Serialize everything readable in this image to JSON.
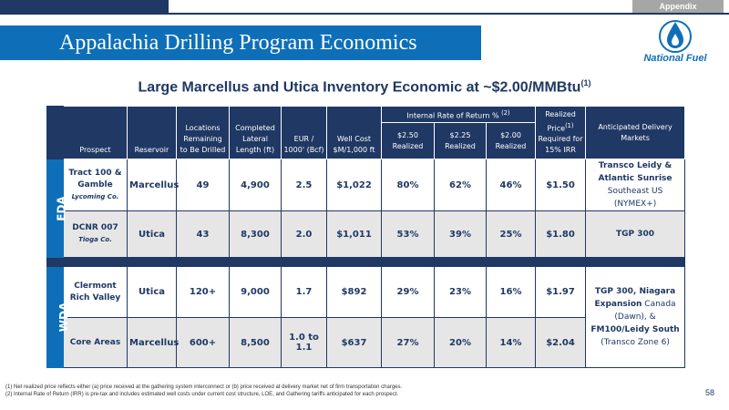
{
  "header": {
    "appendix_tab": "Appendix",
    "title": "Appalachia Drilling Program Economics",
    "logo_text": "National Fuel"
  },
  "subtitle": {
    "text": "Large Marcellus and Utica Inventory Economic at ~$2.00/MMBtu",
    "sup": "(1)"
  },
  "table": {
    "headers": {
      "prospect": "Prospect",
      "reservoir": "Reservoir",
      "locations": "Locations Remaining to Be Drilled",
      "lateral": "Completed Lateral Length (ft)",
      "eur": "EUR / 1000' (Bcf)",
      "well_cost": "Well Cost $M/1,000 ft",
      "irr_group": "Internal Rate of Return %",
      "irr_group_sup": "(2)",
      "irr_250": "$2.50 Realized",
      "irr_225": "$2.25 Realized",
      "irr_200": "$2.00 Realized",
      "price_a": "Realized Price",
      "price_sup": "(1)",
      "price_b": "Required for 15% IRR",
      "markets": "Anticipated Delivery Markets"
    },
    "sections": {
      "eda": "EDA",
      "wda": "WDA"
    },
    "rows": [
      {
        "prospect": "Tract 100 & Gamble",
        "location": "Lycoming Co.",
        "reservoir": "Marcellus",
        "locations": "49",
        "lateral": "4,900",
        "eur": "2.5",
        "well_cost": "$1,022",
        "irr_250": "80%",
        "irr_225": "62%",
        "irr_200": "46%",
        "price": "$1.50",
        "markets_bold": "Transco Leidy & Atlantic Sunrise",
        "markets_normal": "Southeast US (NYMEX+)"
      },
      {
        "prospect": "DCNR 007",
        "location": "Tioga Co.",
        "reservoir": "Utica",
        "locations": "43",
        "lateral": "8,300",
        "eur": "2.0",
        "well_cost": "$1,011",
        "irr_250": "53%",
        "irr_225": "39%",
        "irr_200": "25%",
        "price": "$1.80",
        "markets_bold": "TGP 300"
      },
      {
        "prospect": "Clermont Rich Valley",
        "reservoir": "Utica",
        "locations": "120+",
        "lateral": "9,000",
        "eur": "1.7",
        "well_cost": "$892",
        "irr_250": "29%",
        "irr_225": "23%",
        "irr_200": "16%",
        "price": "$1.97",
        "markets_bold_1": "TGP 300, Niagara Expansion",
        "markets_normal_1": "Canada (Dawn), &",
        "markets_bold_2": "FM100/Leidy South",
        "markets_normal_2": "(Transco Zone 6)"
      },
      {
        "prospect": "Core Areas",
        "reservoir": "Marcellus",
        "locations": "600+",
        "lateral": "8,500",
        "eur": "1.0 to 1.1",
        "well_cost": "$637",
        "irr_250": "27%",
        "irr_225": "20%",
        "irr_200": "14%",
        "price": "$2.04"
      }
    ]
  },
  "footnotes": [
    "(1)   Net realized price reflects either (a) price received at the gathering system interconnect or (b) price received at delivery market net of firm transportation charges.",
    "(2)   Internal Rate of Return (IRR) is pre-tax and includes estimated well costs under current cost structure, LOE, and Gathering tariffs anticipated for each prospect."
  ],
  "page_number": "58",
  "colors": {
    "navy": "#1f3864",
    "brand_blue": "#0e6fb8",
    "row_gray": "#e7e6e6",
    "tab_gray": "#a6a6a6"
  },
  "icons": {
    "logo": "flame-drop-logo-icon"
  }
}
